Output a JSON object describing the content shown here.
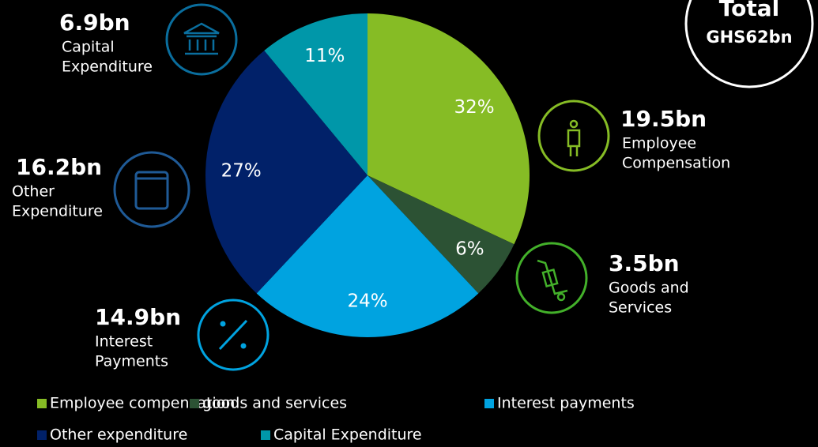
{
  "chart_data": {
    "type": "pie",
    "categories": [
      "Employee compensation",
      "goods and services",
      "Interest payments",
      "Other expenditure",
      "Capital Expenditure"
    ],
    "values": [
      32,
      6,
      24,
      27,
      11
    ],
    "value_labels": [
      "32%",
      "6%",
      "24%",
      "27%",
      "11%"
    ],
    "colors": [
      "#86bc25",
      "#2c5234",
      "#00a3e0",
      "#012169",
      "#0097a9"
    ],
    "callouts": [
      {
        "amount": "19.5bn",
        "label": [
          "Employee",
          "Compensation"
        ]
      },
      {
        "amount": "3.5bn",
        "label": [
          "Goods and",
          "Services"
        ]
      },
      {
        "amount": "14.9bn",
        "label": [
          "Interest",
          "Payments"
        ]
      },
      {
        "amount": "16.2bn",
        "label": [
          "Other",
          "Expenditure"
        ]
      },
      {
        "amount": "6.9bn",
        "label": [
          "Capital",
          "Expenditure"
        ]
      }
    ],
    "total": {
      "title": "Total",
      "value": "GHS62bn"
    }
  }
}
